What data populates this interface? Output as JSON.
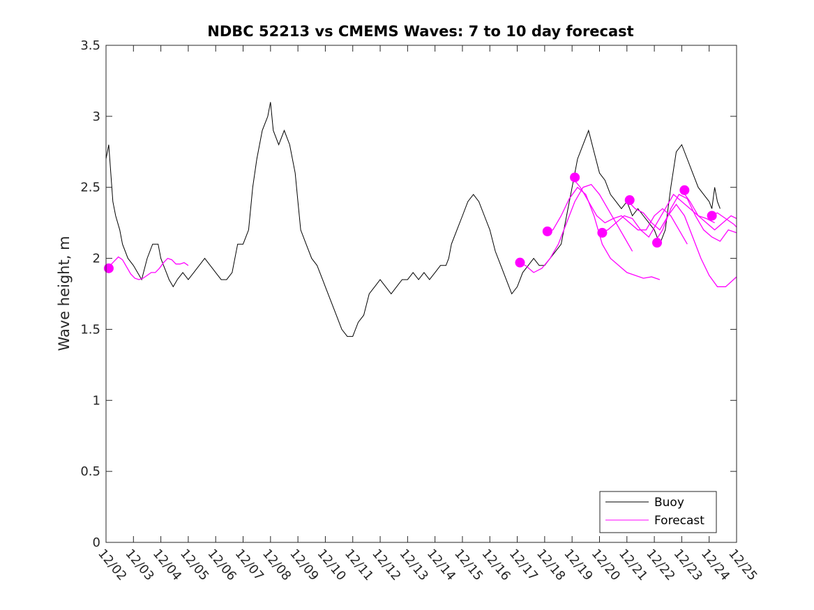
{
  "chart_data": {
    "type": "line",
    "title": "NDBC 52213 vs CMEMS Waves: 7 to 10 day forecast",
    "xlabel": "",
    "ylabel": "Wave height, m",
    "xlim": [
      0,
      23
    ],
    "ylim": [
      0,
      3.5
    ],
    "yticks": [
      0,
      0.5,
      1,
      1.5,
      2,
      2.5,
      3,
      3.5
    ],
    "ytick_labels": [
      "0",
      "0.5",
      "1",
      "1.5",
      "2",
      "2.5",
      "3",
      "3.5"
    ],
    "xtick_labels": [
      "12/02",
      "12/03",
      "12/04",
      "12/05",
      "12/06",
      "12/07",
      "12/08",
      "12/09",
      "12/10",
      "12/11",
      "12/12",
      "12/13",
      "12/14",
      "12/15",
      "12/16",
      "12/17",
      "12/18",
      "12/19",
      "12/20",
      "12/21",
      "12/22",
      "12/23",
      "12/24",
      "12/25"
    ],
    "grid": false,
    "legend": {
      "location": "bottom-right",
      "entries": [
        "Buoy",
        "Forecast"
      ]
    },
    "colors": {
      "buoy": "#000000",
      "forecast": "#ff00ff",
      "marker": "#ff00ff",
      "axis": "#262626"
    },
    "buoy": {
      "name": "Buoy",
      "x": [
        0,
        0.1,
        0.25,
        0.35,
        0.5,
        0.6,
        0.8,
        1,
        1.15,
        1.3,
        1.5,
        1.7,
        1.9,
        2,
        2.1,
        2.2,
        2.3,
        2.45,
        2.6,
        2.8,
        3,
        3.2,
        3.4,
        3.6,
        3.8,
        4,
        4.2,
        4.4,
        4.6,
        4.8,
        5,
        5.2,
        5.35,
        5.5,
        5.7,
        5.9,
        6,
        6.1,
        6.2,
        6.3,
        6.5,
        6.7,
        6.9,
        7,
        7.1,
        7.3,
        7.5,
        7.7,
        7.9,
        8,
        8.2,
        8.4,
        8.6,
        8.8,
        9,
        9.2,
        9.4,
        9.6,
        9.8,
        10,
        10.2,
        10.4,
        10.6,
        10.8,
        11,
        11.2,
        11.4,
        11.6,
        11.8,
        12,
        12.2,
        12.4,
        12.5,
        12.6,
        12.8,
        13,
        13.2,
        13.4,
        13.6,
        13.8,
        14,
        14.2,
        14.4,
        14.6,
        14.8,
        15,
        15.2,
        15.4,
        15.6,
        15.8,
        16,
        16.2,
        16.4,
        16.6,
        16.8,
        17,
        17.2,
        17.4,
        17.6,
        17.8,
        18,
        18.2,
        18.4,
        18.6,
        18.8,
        19,
        19.2,
        19.4,
        19.6,
        19.8,
        20,
        20.2,
        20.4,
        20.6,
        20.8,
        21,
        21.2,
        21.4,
        21.6,
        21.8,
        22,
        22.1,
        22.2,
        22.3,
        22.4
      ],
      "y": [
        2.7,
        2.8,
        2.4,
        2.3,
        2.2,
        2.1,
        2.0,
        1.95,
        1.9,
        1.85,
        2.0,
        2.1,
        2.1,
        2.0,
        1.95,
        1.9,
        1.85,
        1.8,
        1.85,
        1.9,
        1.85,
        1.9,
        1.95,
        2.0,
        1.95,
        1.9,
        1.85,
        1.85,
        1.9,
        2.1,
        2.1,
        2.2,
        2.5,
        2.7,
        2.9,
        3.0,
        3.1,
        2.9,
        2.85,
        2.8,
        2.9,
        2.8,
        2.6,
        2.4,
        2.2,
        2.1,
        2.0,
        1.95,
        1.85,
        1.8,
        1.7,
        1.6,
        1.5,
        1.45,
        1.45,
        1.55,
        1.6,
        1.75,
        1.8,
        1.85,
        1.8,
        1.75,
        1.8,
        1.85,
        1.85,
        1.9,
        1.85,
        1.9,
        1.85,
        1.9,
        1.95,
        1.95,
        2.0,
        2.1,
        2.2,
        2.3,
        2.4,
        2.45,
        2.4,
        2.3,
        2.2,
        2.05,
        1.95,
        1.85,
        1.75,
        1.8,
        1.9,
        1.95,
        2.0,
        1.95,
        1.95,
        2.0,
        2.05,
        2.1,
        2.3,
        2.5,
        2.7,
        2.8,
        2.9,
        2.75,
        2.6,
        2.55,
        2.45,
        2.4,
        2.35,
        2.4,
        2.3,
        2.35,
        2.3,
        2.25,
        2.2,
        2.1,
        2.2,
        2.5,
        2.75,
        2.8,
        2.7,
        2.6,
        2.5,
        2.45,
        2.4,
        2.35,
        2.5,
        2.4,
        2.35
      ]
    },
    "forecast_segments": [
      {
        "x": [
          0,
          0.15,
          0.3,
          0.45,
          0.6,
          0.75,
          0.9,
          1.05,
          1.2,
          1.35,
          1.5,
          1.65,
          1.8,
          1.95,
          2.1,
          2.25,
          2.4,
          2.55,
          2.7,
          2.85,
          3.0
        ],
        "y": [
          1.93,
          1.95,
          1.98,
          2.01,
          1.99,
          1.94,
          1.89,
          1.86,
          1.85,
          1.86,
          1.88,
          1.9,
          1.9,
          1.93,
          1.97,
          2.0,
          1.99,
          1.96,
          1.96,
          1.97,
          1.95
        ]
      },
      {
        "x": [
          15.0,
          15.3,
          15.6,
          15.9,
          16.2,
          16.5,
          16.8,
          17.1,
          17.4,
          17.7,
          18.0,
          18.3,
          18.6,
          18.9,
          19.2
        ],
        "y": [
          1.97,
          1.95,
          1.9,
          1.93,
          2.0,
          2.1,
          2.25,
          2.4,
          2.5,
          2.52,
          2.45,
          2.35,
          2.25,
          2.15,
          2.05
        ]
      },
      {
        "x": [
          16.0,
          16.3,
          16.6,
          16.9,
          17.2,
          17.5,
          17.8,
          18.1,
          18.4,
          18.7,
          19.0,
          19.3,
          19.6,
          19.9,
          20.2
        ],
        "y": [
          2.19,
          2.2,
          2.3,
          2.42,
          2.5,
          2.45,
          2.3,
          2.1,
          2.0,
          1.95,
          1.9,
          1.88,
          1.86,
          1.87,
          1.85
        ]
      },
      {
        "x": [
          17.0,
          17.3,
          17.6,
          17.9,
          18.2,
          18.5,
          18.8,
          19.1,
          19.4,
          19.7,
          20.0,
          20.3,
          20.6,
          20.9,
          21.2
        ],
        "y": [
          2.57,
          2.5,
          2.4,
          2.3,
          2.25,
          2.28,
          2.3,
          2.25,
          2.2,
          2.2,
          2.3,
          2.35,
          2.3,
          2.2,
          2.1
        ]
      },
      {
        "x": [
          18.0,
          18.3,
          18.6,
          18.9,
          19.2,
          19.5,
          19.8,
          20.1,
          20.4,
          20.7,
          21.0,
          21.3,
          21.6,
          21.9,
          22.2
        ],
        "y": [
          2.18,
          2.2,
          2.25,
          2.3,
          2.28,
          2.2,
          2.15,
          2.25,
          2.35,
          2.45,
          2.4,
          2.35,
          2.3,
          2.28,
          2.25
        ]
      },
      {
        "x": [
          19.0,
          19.3,
          19.6,
          19.9,
          20.2,
          20.5,
          20.8,
          21.1,
          21.4,
          21.7,
          22.0,
          22.3,
          22.6,
          23.0
        ],
        "y": [
          2.41,
          2.35,
          2.32,
          2.25,
          2.2,
          2.3,
          2.38,
          2.3,
          2.15,
          2.0,
          1.88,
          1.8,
          1.8,
          1.87
        ]
      },
      {
        "x": [
          20.0,
          20.3,
          20.6,
          20.9,
          21.2,
          21.5,
          21.8,
          22.1,
          22.4,
          22.7,
          23.0
        ],
        "y": [
          2.11,
          2.2,
          2.35,
          2.45,
          2.42,
          2.3,
          2.2,
          2.15,
          2.12,
          2.2,
          2.18
        ]
      },
      {
        "x": [
          21.0,
          21.3,
          21.6,
          21.9,
          22.2,
          22.5,
          22.8,
          23.0
        ],
        "y": [
          2.48,
          2.4,
          2.3,
          2.25,
          2.2,
          2.25,
          2.3,
          2.28
        ]
      },
      {
        "x": [
          22.0,
          22.3,
          22.6,
          22.9,
          23.0
        ],
        "y": [
          2.3,
          2.32,
          2.28,
          2.24,
          2.22
        ]
      }
    ],
    "forecast_markers": {
      "x": [
        0.1,
        15.1,
        16.1,
        17.1,
        18.1,
        19.1,
        20.1,
        21.1,
        22.1
      ],
      "y": [
        1.93,
        1.97,
        2.19,
        2.57,
        2.18,
        2.41,
        2.11,
        2.48,
        2.3
      ]
    }
  }
}
